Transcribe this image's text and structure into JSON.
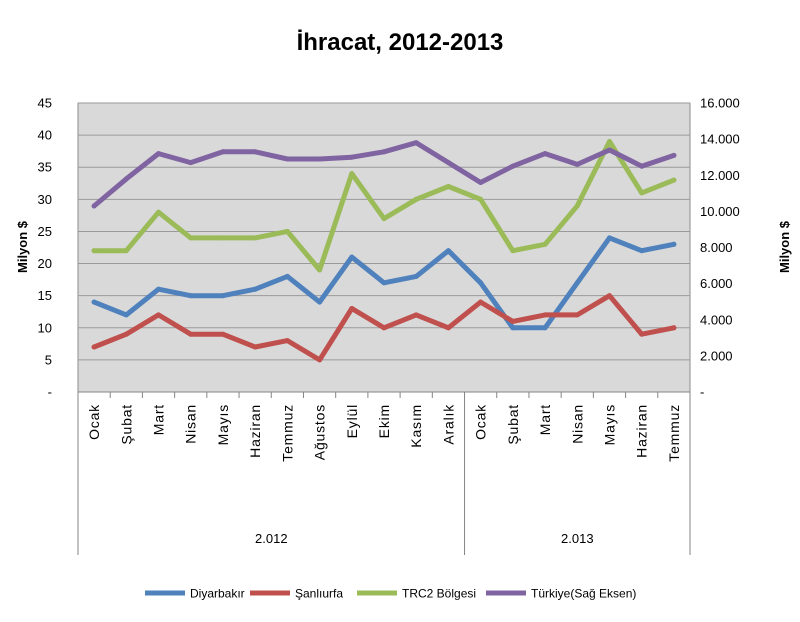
{
  "chart_data": {
    "type": "line",
    "title": "İhracat, 2012-2013",
    "categories": [
      "Ocak",
      "Şubat",
      "Mart",
      "Nisan",
      "Mayıs",
      "Haziran",
      "Temmuz",
      "Ağustos",
      "Eylül",
      "Ekim",
      "Kasım",
      "Aralık",
      "Ocak",
      "Şubat",
      "Mart",
      "Nisan",
      "Mayıs",
      "Haziran",
      "Temmuz"
    ],
    "category_groups": [
      {
        "label": "2.012",
        "count": 12
      },
      {
        "label": "2.013",
        "count": 7
      }
    ],
    "ylabel": "Milyon $",
    "ylim": [
      0,
      45
    ],
    "yticks": [
      0,
      5,
      10,
      15,
      20,
      25,
      30,
      35,
      40,
      45
    ],
    "ytick_labels": [
      "-",
      "5",
      "10",
      "15",
      "20",
      "25",
      "30",
      "35",
      "40",
      "45"
    ],
    "y2label": "Milyon $",
    "y2lim": [
      0,
      16000
    ],
    "y2ticks": [
      0,
      2000,
      4000,
      6000,
      8000,
      10000,
      12000,
      14000,
      16000
    ],
    "y2tick_labels": [
      "-",
      "2.000",
      "4.000",
      "6.000",
      "8.000",
      "10.000",
      "12.000",
      "14.000",
      "16.000"
    ],
    "grid": true,
    "legend": "bottom",
    "series": [
      {
        "name": "Diyarbakır",
        "axis": "left",
        "color": "#4f81bd",
        "values": [
          14,
          12,
          16,
          15,
          15,
          16,
          18,
          14,
          21,
          17,
          18,
          22,
          17,
          10,
          10,
          17,
          24,
          22,
          23
        ]
      },
      {
        "name": "Şanlıurfa",
        "axis": "left",
        "color": "#c0504d",
        "values": [
          7,
          9,
          12,
          9,
          9,
          7,
          8,
          5,
          13,
          10,
          12,
          10,
          14,
          11,
          12,
          12,
          15,
          9,
          10
        ]
      },
      {
        "name": "TRC2 Bölgesi",
        "axis": "left",
        "color": "#9bbb59",
        "values": [
          22,
          22,
          28,
          24,
          24,
          24,
          25,
          19,
          34,
          27,
          30,
          32,
          30,
          22,
          23,
          29,
          39,
          31,
          33
        ]
      },
      {
        "name": "Türkiye(Sağ Eksen)",
        "axis": "right",
        "color": "#8064a2",
        "values": [
          10300,
          11800,
          13200,
          12700,
          13300,
          13300,
          12900,
          12900,
          13000,
          13300,
          13800,
          12700,
          11600,
          12500,
          13200,
          12600,
          13400,
          12500,
          13100
        ]
      }
    ]
  }
}
